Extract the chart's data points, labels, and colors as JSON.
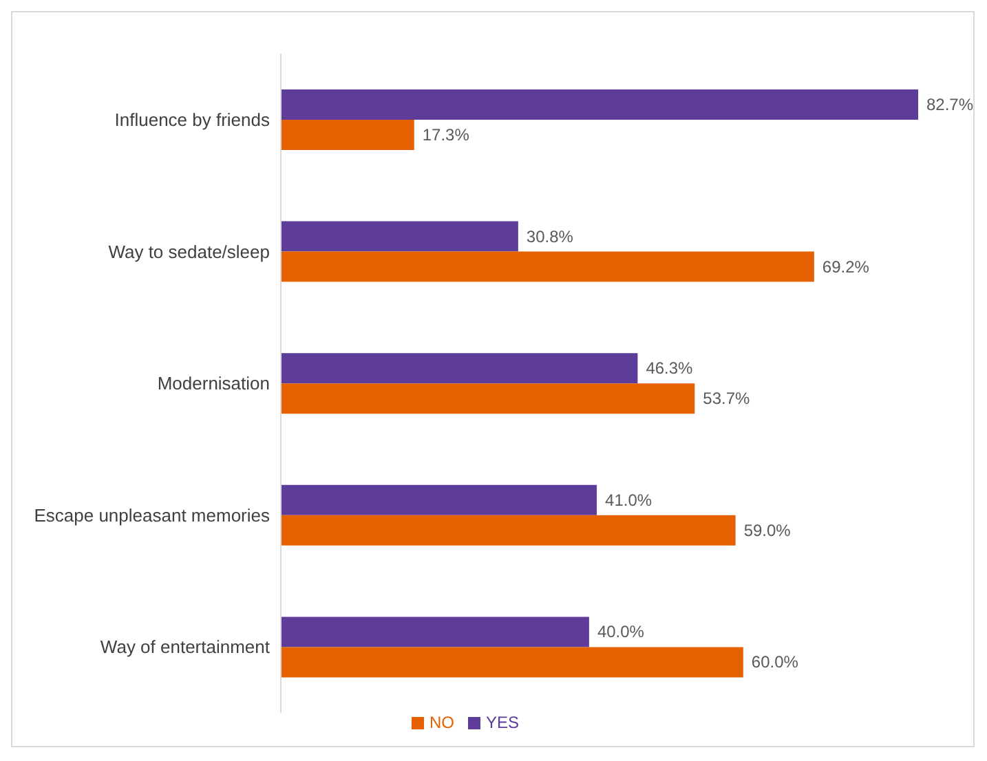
{
  "chart_data": {
    "type": "bar",
    "orientation": "horizontal",
    "categories": [
      "Influence by friends",
      "Way to sedate/sleep",
      "Modernisation",
      "Escape unpleasant memories",
      "Way of entertainment"
    ],
    "series": [
      {
        "name": "YES",
        "color": "#5e3c99",
        "values": [
          82.7,
          30.8,
          46.3,
          41.0,
          40.0
        ],
        "value_labels": [
          "82.7%",
          "30.8%",
          "46.3%",
          "41.0%",
          "40.0%"
        ]
      },
      {
        "name": "NO",
        "color": "#e66101",
        "values": [
          17.3,
          69.2,
          53.7,
          59.0,
          60.0
        ],
        "value_labels": [
          "17.3%",
          "69.2%",
          "53.7%",
          "59.0%",
          "60.0%"
        ]
      }
    ],
    "legend": "bottom",
    "grid": false
  }
}
